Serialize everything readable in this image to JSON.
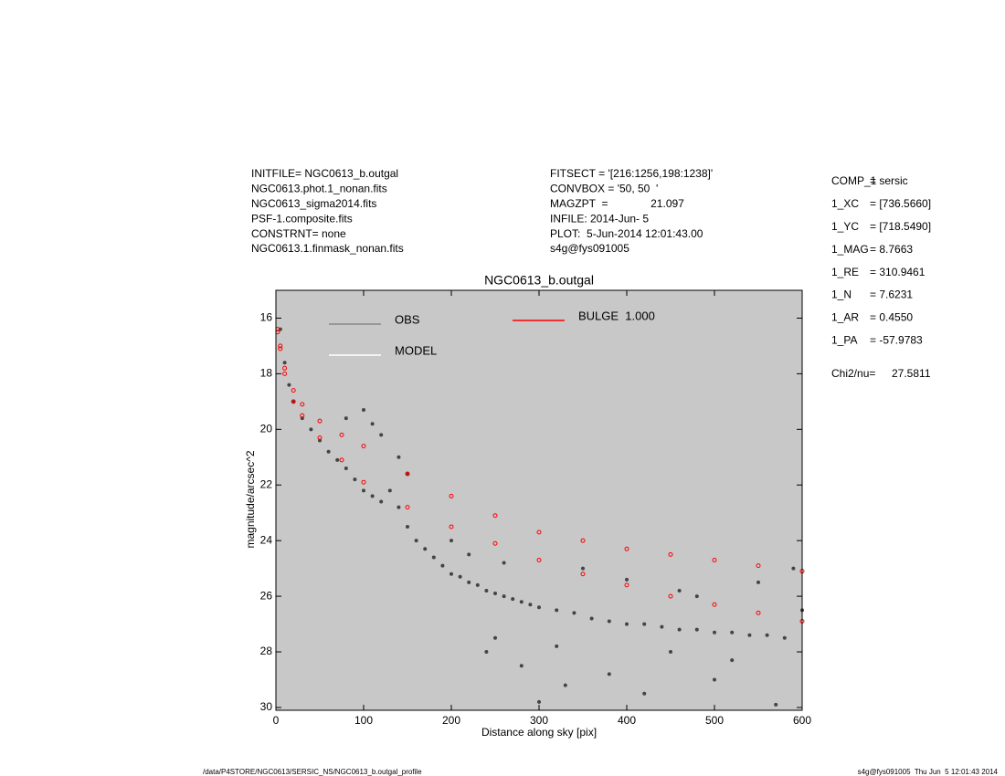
{
  "header_left": [
    "INITFILE= NGC0613_b.outgal",
    "NGC0613.phot.1_nonan.fits",
    "NGC0613_sigma2014.fits",
    "PSF-1.composite.fits",
    "CONSTRNT= none",
    "NGC0613.1.finmask_nonan.fits"
  ],
  "header_center": [
    "FITSECT = '[216:1256,198:1238]'",
    "CONVBOX = '50, 50  '",
    "MAGZPT  =              21.097",
    "INFILE: 2014-Jun- 5",
    "PLOT:  5-Jun-2014 12:01:43.00",
    "s4g@fys091005"
  ],
  "parameters": [
    {
      "name": "COMP_1",
      "value": "= sersic"
    },
    {
      "name": "1_XC",
      "value": "= [736.5660]"
    },
    {
      "name": "1_YC",
      "value": "= [718.5490]"
    },
    {
      "name": "1_MAG",
      "value": "= 8.7663"
    },
    {
      "name": "1_RE",
      "value": "= 310.9461"
    },
    {
      "name": "1_N",
      "value": "= 7.6231"
    },
    {
      "name": "1_AR",
      "value": "= 0.4550"
    },
    {
      "name": "1_PA",
      "value": "= -57.9783"
    }
  ],
  "chi2": {
    "name": "Chi2/nu=",
    "value": "27.5811"
  },
  "footer_left": "/data/P4STORE/NGC0613/SERSIC_NS/NGC0613_b.outgal_profile",
  "footer_right": "s4g@fys091005  Thu Jun  5 12:01:43 2014",
  "chart_data": {
    "type": "scatter",
    "title": "NGC0613_b.outgal",
    "x_label": "Distance along sky [pix]",
    "y_label": "magnitude/arcsec^2",
    "xlim": [
      0,
      600
    ],
    "xticks": [
      0,
      100,
      200,
      300,
      400,
      500,
      600
    ],
    "ylim": [
      30.1,
      15
    ],
    "yticks": [
      16,
      18,
      20,
      22,
      24,
      26,
      28,
      30
    ],
    "background": "#c8c8c8",
    "series": [
      {
        "name": "OBS",
        "color": "#444444",
        "legend_color": "#888888",
        "x": [
          5,
          10,
          15,
          20,
          30,
          40,
          50,
          60,
          70,
          80,
          90,
          100,
          110,
          120,
          130,
          140,
          150,
          160,
          170,
          180,
          190,
          200,
          210,
          220,
          230,
          240,
          250,
          260,
          270,
          280,
          290,
          300,
          320,
          340,
          360,
          380,
          400,
          420,
          440,
          460,
          480,
          500,
          520,
          540,
          560,
          580,
          600,
          100,
          110,
          120,
          140,
          150,
          80,
          200,
          220,
          250,
          280,
          300,
          320,
          350,
          380,
          400,
          420,
          450,
          480,
          500,
          520,
          550,
          570,
          590,
          260,
          240,
          330,
          460
        ],
        "values": [
          16.4,
          17.6,
          18.4,
          19.0,
          19.6,
          20.0,
          20.4,
          20.8,
          21.1,
          21.4,
          21.8,
          22.2,
          22.4,
          22.6,
          22.2,
          22.8,
          23.5,
          24.0,
          24.3,
          24.6,
          24.9,
          25.2,
          25.3,
          25.5,
          25.6,
          25.8,
          25.9,
          26.0,
          26.1,
          26.2,
          26.3,
          26.4,
          26.5,
          26.6,
          26.8,
          26.9,
          27.0,
          27.0,
          27.1,
          27.2,
          27.2,
          27.3,
          27.3,
          27.4,
          27.4,
          27.5,
          26.5,
          19.3,
          19.8,
          20.2,
          21.0,
          21.6,
          19.6,
          24.0,
          24.5,
          27.5,
          28.5,
          29.8,
          27.8,
          25.0,
          28.8,
          25.4,
          29.5,
          28.0,
          26.0,
          29.0,
          28.3,
          25.5,
          29.9,
          25.0,
          24.8,
          28.0,
          29.2,
          25.8
        ]
      },
      {
        "name": "BULGE  1.000",
        "color": "#ff0000",
        "legend_color": "#ff0000",
        "x": [
          2,
          5,
          10,
          20,
          30,
          50,
          75,
          100,
          150,
          200,
          250,
          300,
          350,
          400,
          450,
          500,
          550,
          600,
          2,
          5,
          10,
          20,
          30,
          50,
          75,
          100,
          150,
          200,
          250,
          300,
          350,
          400,
          450,
          500,
          550,
          600
        ],
        "values": [
          16.4,
          17.0,
          17.8,
          18.6,
          19.1,
          19.7,
          20.2,
          20.6,
          21.6,
          22.4,
          23.1,
          23.7,
          24.0,
          24.3,
          24.5,
          24.7,
          24.9,
          25.1,
          16.5,
          17.1,
          18.0,
          19.0,
          19.5,
          20.3,
          21.1,
          21.9,
          22.8,
          23.5,
          24.1,
          24.7,
          25.2,
          25.6,
          26.0,
          26.3,
          26.6,
          26.9
        ]
      },
      {
        "name": "MODEL",
        "color": "#ffffff",
        "legend_color": "#ffffff",
        "x": [],
        "values": []
      }
    ]
  }
}
